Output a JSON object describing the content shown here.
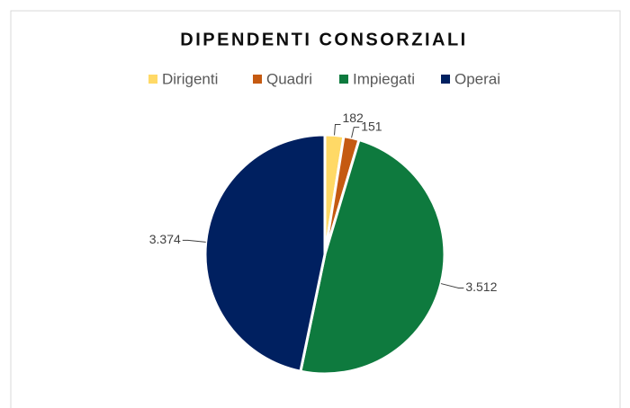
{
  "chart_data": {
    "type": "pie",
    "title": "DIPENDENTI CONSORZIALI",
    "categories": [
      "Dirigenti",
      "Quadri",
      "Impiegati",
      "Operai"
    ],
    "values": [
      182,
      151,
      3512,
      3374
    ],
    "value_labels": [
      "182",
      "151",
      "3.512",
      "3.374"
    ],
    "colors": [
      "#ffd966",
      "#c55a11",
      "#0e7a3e",
      "#002060"
    ],
    "legend": "top"
  }
}
